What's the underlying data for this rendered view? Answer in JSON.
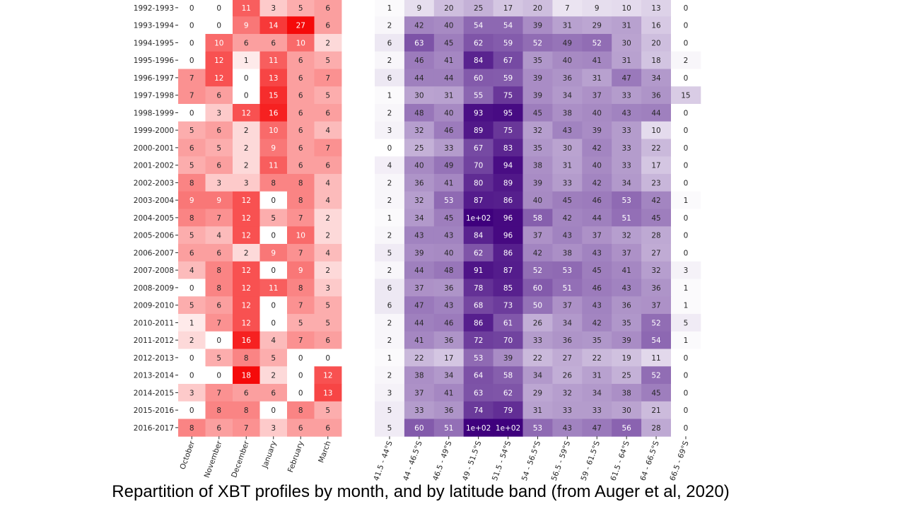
{
  "caption": "Repartition of XBT profiles by month, and by latitude band (from Auger et al, 2020)",
  "colors": {
    "month_high": "#f50a0a",
    "lat_high": "#3f007d"
  },
  "chart_data": [
    {
      "type": "heatmap",
      "colormap": "white-to-red",
      "x_labels": [
        "October",
        "November",
        "December",
        "January",
        "February",
        "March"
      ],
      "y_labels": [
        "1992-1993",
        "1993-1994",
        "1994-1995",
        "1995-1996",
        "1996-1997",
        "1997-1998",
        "1998-1999",
        "1999-2000",
        "2000-2001",
        "2001-2002",
        "2002-2003",
        "2003-2004",
        "2004-2005",
        "2005-2006",
        "2006-2007",
        "2007-2008",
        "2008-2009",
        "2009-2010",
        "2010-2011",
        "2011-2012",
        "2012-2013",
        "2013-2014",
        "2014-2015",
        "2015-2016",
        "2016-2017"
      ],
      "values": [
        [
          0,
          0,
          11,
          3,
          5,
          6
        ],
        [
          0,
          0,
          9,
          14,
          27,
          6
        ],
        [
          0,
          10,
          6,
          6,
          10,
          2
        ],
        [
          0,
          12,
          1,
          11,
          6,
          5
        ],
        [
          7,
          12,
          0,
          13,
          6,
          7
        ],
        [
          7,
          6,
          0,
          15,
          6,
          5
        ],
        [
          0,
          3,
          12,
          16,
          6,
          6
        ],
        [
          5,
          6,
          2,
          10,
          6,
          4
        ],
        [
          6,
          5,
          2,
          9,
          6,
          7
        ],
        [
          5,
          6,
          2,
          11,
          6,
          6
        ],
        [
          8,
          3,
          3,
          8,
          8,
          4
        ],
        [
          9,
          9,
          12,
          0,
          8,
          4
        ],
        [
          8,
          7,
          12,
          5,
          7,
          2
        ],
        [
          5,
          4,
          12,
          0,
          10,
          2
        ],
        [
          6,
          6,
          2,
          9,
          7,
          4
        ],
        [
          4,
          8,
          12,
          0,
          9,
          2
        ],
        [
          0,
          8,
          12,
          11,
          8,
          3
        ],
        [
          5,
          6,
          12,
          0,
          7,
          5
        ],
        [
          1,
          7,
          12,
          0,
          5,
          5
        ],
        [
          2,
          0,
          16,
          4,
          7,
          6
        ],
        [
          0,
          5,
          8,
          5,
          0,
          0
        ],
        [
          0,
          0,
          18,
          2,
          0,
          12
        ],
        [
          3,
          7,
          6,
          6,
          0,
          13
        ],
        [
          0,
          8,
          8,
          0,
          8,
          5
        ],
        [
          8,
          6,
          7,
          3,
          6,
          6
        ]
      ],
      "vmax": 18
    },
    {
      "type": "heatmap",
      "colormap": "white-to-purple",
      "x_labels": [
        "41.5 - 44°S",
        "44 - 46.5°S",
        "46.5 - 49°S",
        "49 - 51.5°S",
        "51.5 - 54°S",
        "54 - 56.5°S",
        "56.5 - 59°S",
        "59 - 61.5°S",
        "61.5 - 64°S",
        "64 - 66.5°S",
        "66.5 - 69°S"
      ],
      "values": [
        [
          1,
          9,
          20,
          25,
          17,
          20,
          7,
          9,
          10,
          13,
          0
        ],
        [
          2,
          42,
          40,
          54,
          54,
          39,
          31,
          29,
          31,
          16,
          0
        ],
        [
          6,
          63,
          45,
          62,
          59,
          52,
          49,
          52,
          30,
          20,
          0
        ],
        [
          2,
          46,
          41,
          84,
          67,
          35,
          40,
          41,
          31,
          18,
          2
        ],
        [
          6,
          44,
          44,
          60,
          59,
          39,
          36,
          31,
          47,
          34,
          0
        ],
        [
          1,
          30,
          31,
          55,
          75,
          39,
          34,
          37,
          33,
          36,
          15
        ],
        [
          2,
          48,
          40,
          93,
          95,
          45,
          38,
          40,
          43,
          44,
          0
        ],
        [
          3,
          32,
          46,
          89,
          75,
          32,
          43,
          39,
          33,
          10,
          0
        ],
        [
          0,
          25,
          33,
          67,
          83,
          35,
          30,
          42,
          33,
          22,
          0
        ],
        [
          4,
          40,
          49,
          70,
          94,
          38,
          31,
          40,
          33,
          17,
          0
        ],
        [
          2,
          36,
          41,
          80,
          89,
          39,
          33,
          42,
          34,
          23,
          0
        ],
        [
          2,
          32,
          53,
          87,
          86,
          40,
          45,
          46,
          53,
          42,
          1
        ],
        [
          1,
          34,
          45,
          100,
          96,
          58,
          42,
          44,
          51,
          45,
          0
        ],
        [
          2,
          43,
          43,
          84,
          96,
          37,
          43,
          37,
          32,
          28,
          0
        ],
        [
          5,
          39,
          40,
          62,
          86,
          42,
          38,
          43,
          37,
          27,
          0
        ],
        [
          2,
          44,
          48,
          91,
          87,
          52,
          53,
          45,
          41,
          32,
          3
        ],
        [
          6,
          37,
          36,
          78,
          85,
          60,
          51,
          46,
          43,
          36,
          1
        ],
        [
          6,
          47,
          43,
          68,
          73,
          50,
          37,
          43,
          36,
          37,
          1
        ],
        [
          2,
          44,
          46,
          86,
          61,
          26,
          34,
          42,
          35,
          52,
          5
        ],
        [
          2,
          41,
          36,
          72,
          70,
          33,
          36,
          35,
          39,
          54,
          1
        ],
        [
          1,
          22,
          17,
          53,
          39,
          22,
          27,
          22,
          19,
          11,
          0
        ],
        [
          2,
          38,
          34,
          64,
          58,
          34,
          26,
          31,
          25,
          52,
          0
        ],
        [
          3,
          37,
          41,
          63,
          62,
          29,
          32,
          34,
          38,
          45,
          0
        ],
        [
          5,
          33,
          36,
          74,
          79,
          31,
          33,
          33,
          30,
          21,
          0
        ],
        [
          5,
          60,
          51,
          100,
          100,
          53,
          43,
          47,
          56,
          28,
          0
        ]
      ],
      "cell_text_overrides": {
        "12-3": "1e+02",
        "24-3": "1e+02",
        "24-4": "1e+02"
      },
      "vmax": 100
    }
  ]
}
